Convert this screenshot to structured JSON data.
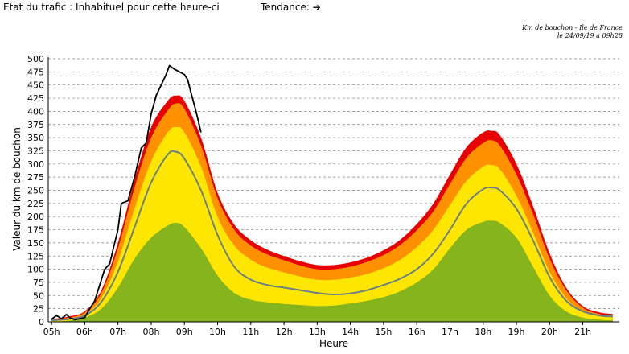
{
  "header": {
    "status_label": "Etat du trafic : ",
    "status_value": "Inhabituel pour cette heure-ci",
    "trend_label": "Tendance: ",
    "trend_icon": "arrow-right-icon",
    "trend_symbol": "➔"
  },
  "caption": {
    "line1": "Km de bouchon - Ile de France",
    "line2": "le 24/09/19 à 09h28"
  },
  "colors": {
    "red": "#e80000",
    "orange": "#ff9000",
    "yellow": "#ffe600",
    "green": "#86b41c",
    "average_line": "#6a7f86",
    "today_line": "#000000",
    "grid": "#808080"
  },
  "chart_data": {
    "type": "area",
    "xlabel": "Heure",
    "ylabel": "Valeur du  km de bouchon",
    "ylim": [
      0,
      500
    ],
    "yticks": [
      0,
      25,
      50,
      75,
      100,
      125,
      150,
      175,
      200,
      225,
      250,
      275,
      300,
      325,
      350,
      375,
      400,
      425,
      450,
      475,
      500
    ],
    "xlim": [
      4.9,
      22.1
    ],
    "xticks": [
      {
        "value": 5,
        "label": "05h"
      },
      {
        "value": 6,
        "label": "06h"
      },
      {
        "value": 7,
        "label": "07h"
      },
      {
        "value": 8,
        "label": "08h"
      },
      {
        "value": 9,
        "label": "09h"
      },
      {
        "value": 10,
        "label": "10h"
      },
      {
        "value": 11,
        "label": "11h"
      },
      {
        "value": 12,
        "label": "12h"
      },
      {
        "value": 13,
        "label": "13h"
      },
      {
        "value": 14,
        "label": "14h"
      },
      {
        "value": 15,
        "label": "15h"
      },
      {
        "value": 16,
        "label": "16h"
      },
      {
        "value": 17,
        "label": "17h"
      },
      {
        "value": 18,
        "label": "18h"
      },
      {
        "value": 19,
        "label": "19h"
      },
      {
        "value": 20,
        "label": "20h"
      },
      {
        "value": 21,
        "label": "21h"
      }
    ],
    "grid": true,
    "x": [
      5,
      5.5,
      6,
      6.5,
      7,
      7.5,
      8,
      8.5,
      8.75,
      9,
      9.5,
      10,
      10.5,
      11,
      11.5,
      12,
      12.5,
      13,
      13.5,
      14,
      14.5,
      15,
      15.5,
      16,
      16.5,
      17,
      17.5,
      18,
      18.25,
      18.5,
      19,
      19.5,
      20,
      20.5,
      21,
      21.5,
      21.9
    ],
    "series": [
      {
        "color_key": "red",
        "values": [
          5,
          10,
          20,
          60,
          150,
          270,
          370,
          420,
          430,
          420,
          350,
          245,
          185,
          155,
          137,
          125,
          115,
          108,
          108,
          113,
          122,
          136,
          156,
          186,
          225,
          280,
          332,
          360,
          363,
          355,
          300,
          220,
          130,
          65,
          30,
          18,
          15
        ]
      },
      {
        "color_key": "orange",
        "values": [
          4,
          8,
          18,
          55,
          140,
          255,
          350,
          402,
          415,
          405,
          335,
          235,
          175,
          145,
          128,
          117,
          107,
          100,
          100,
          105,
          114,
          127,
          146,
          174,
          210,
          262,
          312,
          340,
          345,
          335,
          280,
          205,
          120,
          60,
          27,
          15,
          12
        ]
      },
      {
        "color_key": "yellow",
        "values": [
          3,
          6,
          14,
          45,
          115,
          215,
          305,
          360,
          370,
          360,
          295,
          200,
          145,
          118,
          103,
          94,
          86,
          80,
          80,
          84,
          91,
          102,
          118,
          142,
          175,
          222,
          268,
          295,
          298,
          290,
          240,
          170,
          95,
          45,
          20,
          12,
          10
        ]
      },
      {
        "color_key": "green",
        "values": [
          0,
          2,
          8,
          25,
          65,
          120,
          160,
          183,
          188,
          180,
          140,
          88,
          55,
          42,
          37,
          34,
          32,
          30,
          31,
          35,
          40,
          47,
          58,
          75,
          100,
          140,
          175,
          190,
          192,
          188,
          160,
          105,
          50,
          20,
          8,
          4,
          3
        ]
      },
      {
        "color_key": "average_line",
        "values": [
          3,
          5,
          12,
          38,
          95,
          180,
          265,
          318,
          323,
          310,
          250,
          165,
          105,
          80,
          70,
          65,
          60,
          55,
          52,
          54,
          60,
          70,
          82,
          100,
          130,
          175,
          225,
          252,
          255,
          250,
          215,
          155,
          85,
          40,
          20,
          12,
          10
        ]
      }
    ],
    "today": {
      "color_key": "today_line",
      "x": [
        5,
        5.15,
        5.3,
        5.45,
        5.55,
        5.7,
        5.85,
        6,
        6.1,
        6.3,
        6.5,
        6.6,
        6.75,
        6.9,
        7,
        7.1,
        7.3,
        7.5,
        7.7,
        7.85,
        8,
        8.15,
        8.3,
        8.45,
        8.55,
        8.7,
        8.85,
        9,
        9.1,
        9.2,
        9.35,
        9.5
      ],
      "values": [
        5,
        12,
        6,
        14,
        8,
        4,
        6,
        8,
        20,
        40,
        80,
        100,
        110,
        150,
        175,
        225,
        230,
        275,
        330,
        340,
        395,
        430,
        450,
        470,
        487,
        480,
        475,
        470,
        460,
        435,
        400,
        360
      ]
    }
  }
}
